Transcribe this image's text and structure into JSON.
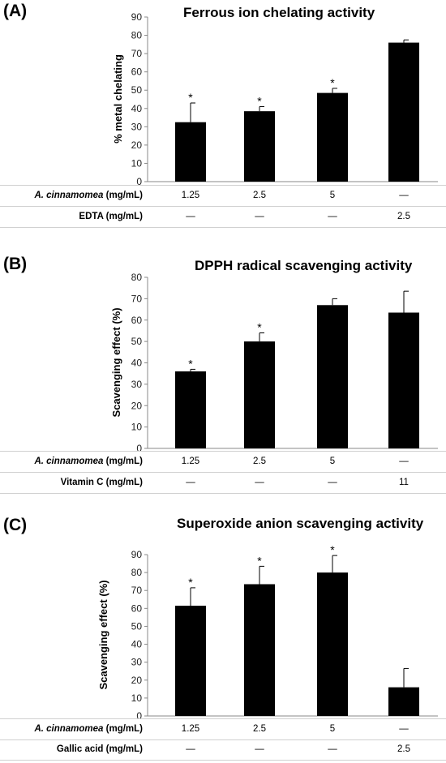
{
  "chart_data": [
    {
      "type": "bar",
      "panel": "(A)",
      "title": "Ferrous ion chelating activity",
      "ylabel": "% metal chelating",
      "ylim": [
        0,
        90
      ],
      "yticks": [
        "0",
        "10",
        "20",
        "30",
        "40",
        "50",
        "60",
        "70",
        "80",
        "90"
      ],
      "values": [
        32.5,
        38.5,
        48.5,
        76
      ],
      "errors": [
        10.5,
        2.5,
        2.5,
        1.5
      ],
      "significance": [
        "*",
        "*",
        "*",
        ""
      ],
      "color": "#000000",
      "table": [
        {
          "label_italic": "A. cinnamomea",
          "label_rest": " (mg/mL)",
          "cells": [
            "1.25",
            "2.5",
            "5",
            "—"
          ]
        },
        {
          "label_italic": "",
          "label_rest": "EDTA (mg/mL)",
          "cells": [
            "—",
            "—",
            "—",
            "2.5"
          ]
        }
      ]
    },
    {
      "type": "bar",
      "panel": "(B)",
      "title": "DPPH radical scavenging activity",
      "ylabel": "Scavenging effect (%)",
      "ylim": [
        0,
        80
      ],
      "yticks": [
        "0",
        "10",
        "20",
        "30",
        "40",
        "50",
        "60",
        "70",
        "80"
      ],
      "values": [
        36,
        50,
        67,
        63.5
      ],
      "errors": [
        1,
        4,
        3,
        10
      ],
      "significance": [
        "*",
        "*",
        "",
        ""
      ],
      "color": "#000000",
      "table": [
        {
          "label_italic": "A. cinnamomea",
          "label_rest": " (mg/mL)",
          "cells": [
            "1.25",
            "2.5",
            "5",
            "—"
          ]
        },
        {
          "label_italic": "",
          "label_rest": "Vitamin C (mg/mL)",
          "cells": [
            "—",
            "—",
            "—",
            "11"
          ]
        }
      ]
    },
    {
      "type": "bar",
      "panel": "(C)",
      "title": "Superoxide anion scavenging activity",
      "ylabel": "Scavenging effect (%)",
      "ylim": [
        0,
        90
      ],
      "yticks": [
        "0",
        "10",
        "20",
        "30",
        "40",
        "50",
        "60",
        "70",
        "80",
        "90"
      ],
      "values": [
        61.5,
        73.5,
        80,
        16
      ],
      "errors": [
        10,
        10,
        9.5,
        10.5
      ],
      "significance": [
        "*",
        "*",
        "*",
        ""
      ],
      "color": "#000000",
      "table": [
        {
          "label_italic": "A. cinnamomea",
          "label_rest": " (mg/mL)",
          "cells": [
            "1.25",
            "2.5",
            "5",
            "—"
          ]
        },
        {
          "label_italic": "",
          "label_rest": "Gallic acid (mg/mL)",
          "cells": [
            "—",
            "—",
            "—",
            "2.5"
          ]
        }
      ]
    }
  ]
}
